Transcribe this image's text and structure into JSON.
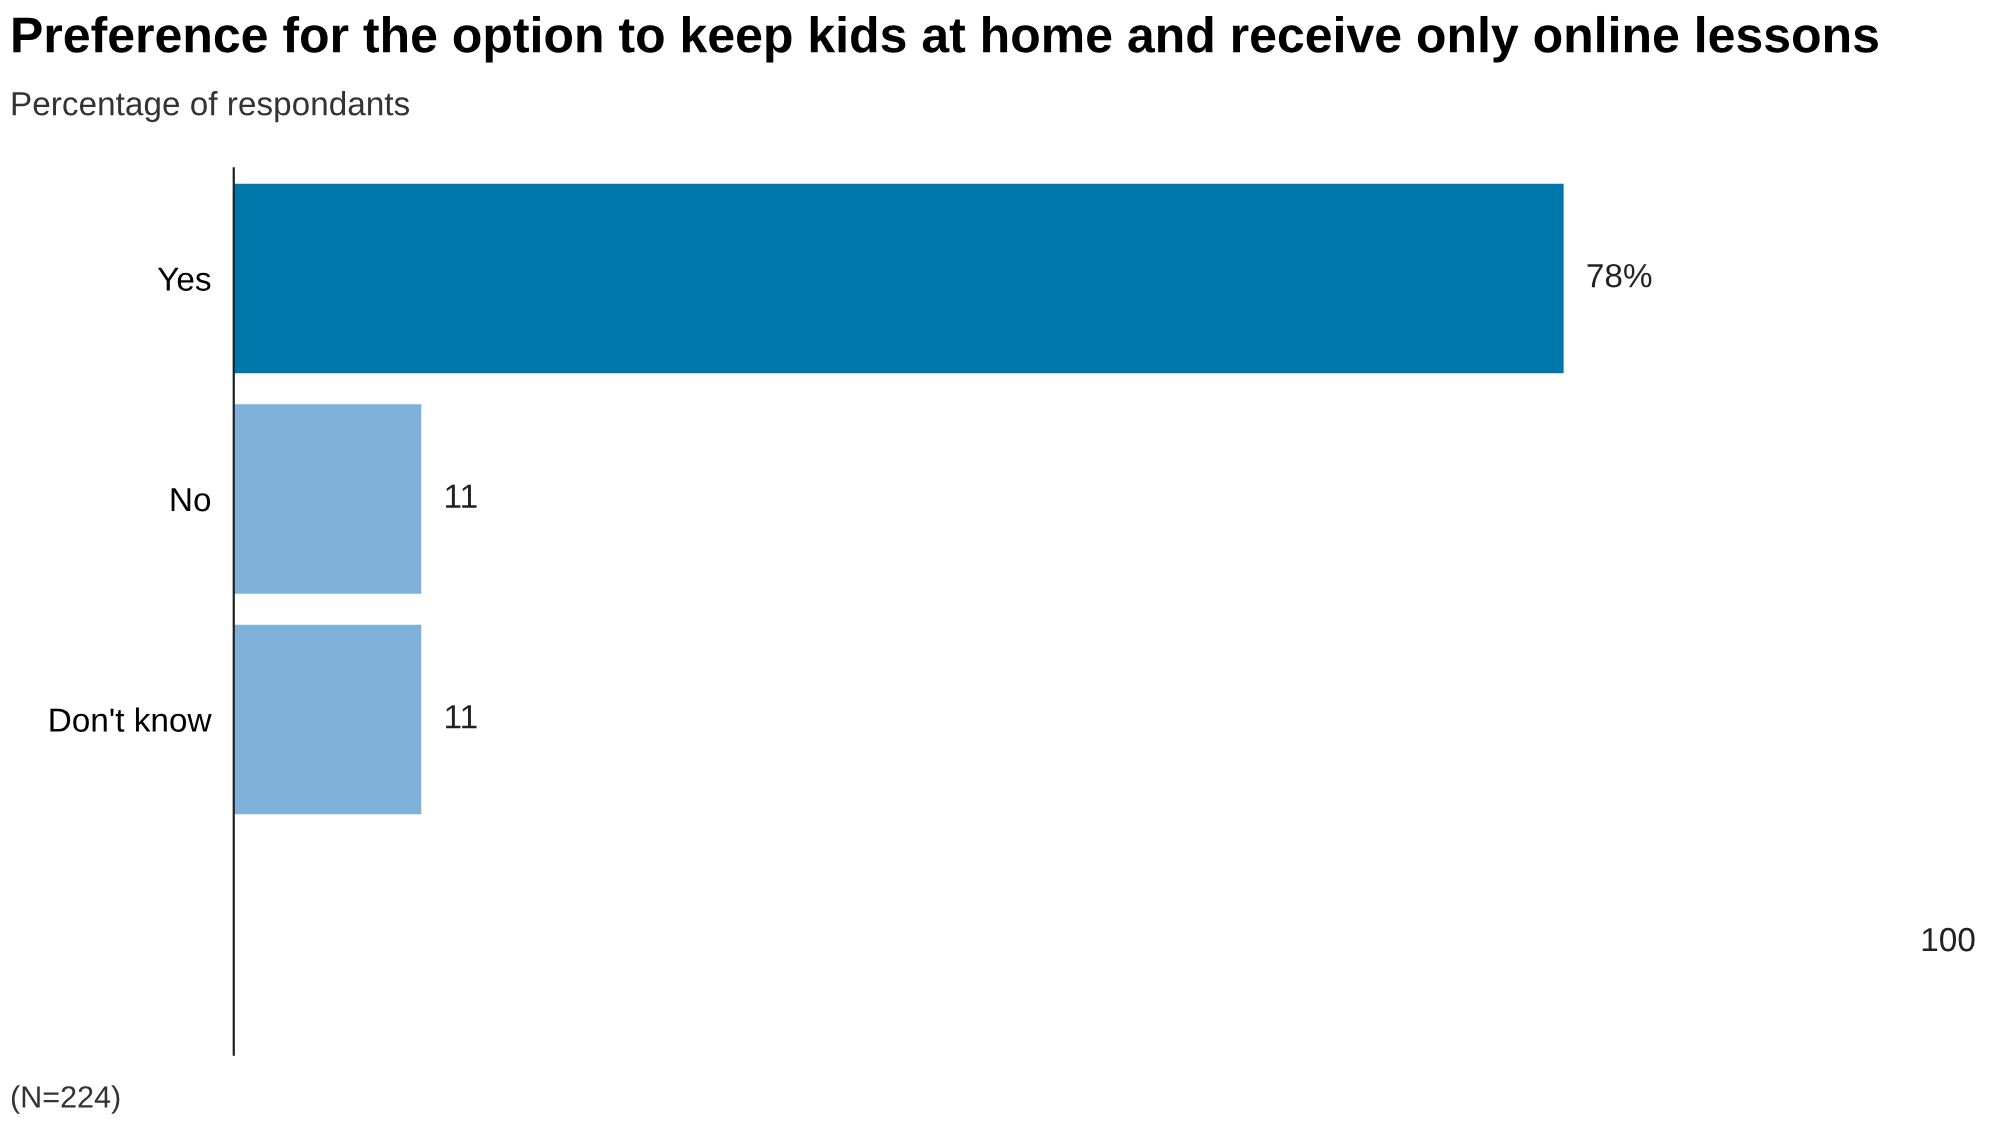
{
  "chart_data": {
    "type": "bar",
    "orientation": "horizontal",
    "title": "Preference for the option to keep kids at home and receive only online lessons",
    "subtitle": "Percentage of respondants",
    "categories": [
      "Yes",
      "No",
      "Don't know"
    ],
    "values": [
      78,
      11,
      11
    ],
    "colors": [
      "#0077aa",
      "#7fb0d8",
      "#7fb0d8"
    ],
    "value_labels": [
      "78%",
      "11",
      "11"
    ],
    "grid": false,
    "legend": false,
    "annotations": [
      "100",
      "(N=224)"
    ]
  }
}
